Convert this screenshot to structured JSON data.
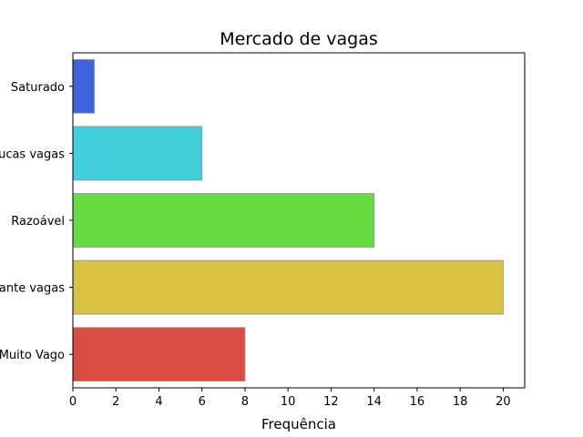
{
  "chart_data": {
    "type": "bar",
    "orientation": "horizontal",
    "title": "Mercado de vagas",
    "xlabel": "Frequência",
    "ylabel": "",
    "categories": [
      "Saturado",
      "Poucas vagas",
      "Razoável",
      "Bastante vagas",
      "Muito Vago"
    ],
    "values": [
      1,
      6,
      14,
      20,
      8
    ],
    "colors": [
      "#4062dd",
      "#40cfdb",
      "#66db42",
      "#d9c142",
      "#d94c42"
    ],
    "xlim": [
      0,
      21
    ],
    "xticks": [
      0,
      2,
      4,
      6,
      8,
      10,
      12,
      14,
      16,
      18,
      20
    ],
    "grid": false,
    "legend": "none"
  }
}
